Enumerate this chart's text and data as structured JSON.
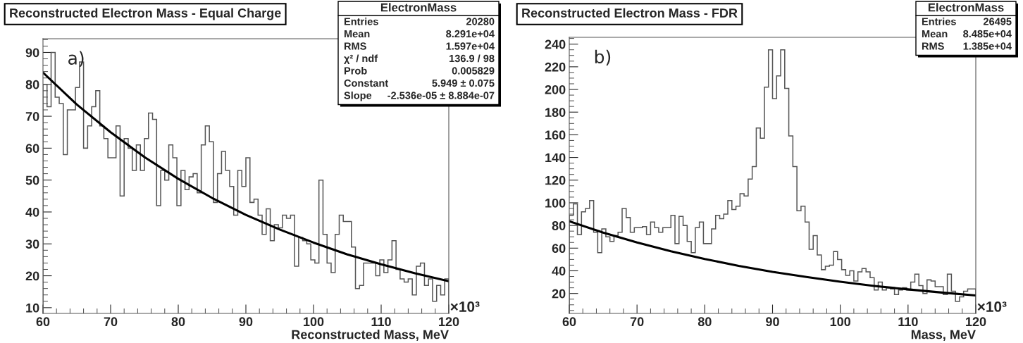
{
  "chart_data": [
    {
      "type": "histogram",
      "title": "Reconstructed Electron Mass - Equal Charge",
      "xlabel": "Reconstructed Mass, MeV",
      "annotations": [
        "×10³",
        "a)",
        "ElectronMass",
        "Entries",
        "20280",
        "Mean",
        "8.291e+04",
        "RMS",
        "1.597e+04",
        "χ² / ndf",
        "136.9 / 98",
        "Prob",
        "0.005829",
        "Constant",
        "5.949 ± 0.075",
        "Slope",
        "-2.536e-05 ± 8.884e-07"
      ],
      "color": "#555555",
      "bins": [
        60,
        60.6,
        61.2,
        61.8,
        62.4,
        63,
        63.6,
        64.2,
        64.8,
        65.4,
        66,
        66.6,
        67.2,
        67.8,
        68.4,
        69,
        69.6,
        70.2,
        70.8,
        71.4,
        72,
        72.6,
        73.2,
        73.8,
        74.4,
        75,
        75.6,
        76.2,
        76.8,
        77.4,
        78,
        78.6,
        79.2,
        79.8,
        80.4,
        81,
        81.6,
        82.2,
        82.8,
        83.4,
        84,
        84.6,
        85.2,
        85.8,
        86.4,
        87,
        87.6,
        88.2,
        88.8,
        89.4,
        90,
        90.6,
        91.2,
        91.8,
        92.4,
        93,
        93.6,
        94.2,
        94.8,
        95.4,
        96,
        96.6,
        97.2,
        97.8,
        98.4,
        99,
        99.6,
        100.2,
        100.8,
        101.4,
        102,
        102.6,
        103.2,
        103.8,
        104.4,
        105,
        105.6,
        106.2,
        106.8,
        107.4,
        108,
        108.6,
        109.2,
        109.8,
        110.4,
        111,
        111.6,
        112.2,
        112.8,
        113.4,
        114,
        114.6,
        115.2,
        115.8,
        116.4,
        117,
        117.6,
        118.2,
        118.8,
        119.4,
        120
      ],
      "values": [
        80,
        73,
        90,
        76,
        74,
        58,
        72,
        72,
        79,
        87,
        60,
        67,
        73,
        78,
        67,
        63,
        57,
        57,
        67,
        45,
        63,
        60,
        53,
        61,
        53,
        63,
        71,
        69,
        42,
        53,
        50,
        61,
        57,
        42,
        53,
        47,
        51,
        52,
        46,
        61,
        67,
        62,
        43,
        52,
        59,
        53,
        48,
        39,
        53,
        48,
        57,
        43,
        44,
        39,
        33,
        41,
        31,
        36,
        35,
        39,
        38,
        39,
        23,
        32,
        31,
        30,
        25,
        24,
        50,
        33,
        24,
        21,
        33,
        39,
        37,
        37,
        29,
        16,
        17,
        24,
        24,
        24,
        20,
        25,
        21,
        25,
        31,
        22,
        19,
        18,
        19,
        14,
        23,
        24,
        17,
        19,
        12,
        17,
        14,
        19
      ],
      "series": [
        {
          "type": "line",
          "color": "#000000",
          "x": [
            60,
            65,
            70,
            75,
            80,
            85,
            90,
            95,
            100,
            105,
            110,
            115,
            120
          ],
          "values": [
            83.7,
            73.7,
            65.0,
            57.2,
            50.4,
            44.4,
            39.1,
            34.5,
            30.4,
            26.7,
            23.6,
            20.8,
            18.3
          ]
        }
      ],
      "xlim": [
        60,
        120
      ],
      "ylim": [
        8.2,
        94.3
      ],
      "xticks": [
        60,
        70,
        80,
        90,
        100,
        110,
        120
      ],
      "yticks": [
        10,
        20,
        30,
        40,
        50,
        60,
        70,
        80,
        90
      ],
      "grid": false
    },
    {
      "type": "histogram",
      "title": "Reconstructed Electron Mass - FDR",
      "xlabel": "Mass, MeV",
      "annotations": [
        "×10³",
        "b)",
        "ElectronMass",
        "Entries",
        "26495",
        "Mean",
        "8.485e+04",
        "RMS",
        "1.385e+04"
      ],
      "color": "#555555",
      "bins": [
        60,
        60.6,
        61.2,
        61.8,
        62.4,
        63,
        63.6,
        64.2,
        64.8,
        65.4,
        66,
        66.6,
        67.2,
        67.8,
        68.4,
        69,
        69.6,
        70.2,
        70.8,
        71.4,
        72,
        72.6,
        73.2,
        73.8,
        74.4,
        75,
        75.6,
        76.2,
        76.8,
        77.4,
        78,
        78.6,
        79.2,
        79.8,
        80.4,
        81,
        81.6,
        82.2,
        82.8,
        83.4,
        84,
        84.6,
        85.2,
        85.8,
        86.4,
        87,
        87.6,
        88.2,
        88.8,
        89.4,
        90,
        90.6,
        91.2,
        91.8,
        92.4,
        93,
        93.6,
        94.2,
        94.8,
        95.4,
        96,
        96.6,
        97.2,
        97.8,
        98.4,
        99,
        99.6,
        100.2,
        100.8,
        101.4,
        102,
        102.6,
        103.2,
        103.8,
        104.4,
        105,
        105.6,
        106.2,
        106.8,
        107.4,
        108,
        108.6,
        109.2,
        109.8,
        110.4,
        111,
        111.6,
        112.2,
        112.8,
        113.4,
        114,
        114.6,
        115.2,
        115.8,
        116.4,
        117,
        117.6,
        118.2,
        118.8,
        119.4,
        120
      ],
      "values": [
        89,
        99,
        72,
        92,
        95,
        102,
        74,
        56,
        77,
        70,
        66,
        71,
        74,
        95,
        87,
        74,
        78,
        78,
        79,
        72,
        83,
        78,
        74,
        78,
        78,
        89,
        64,
        88,
        80,
        66,
        56,
        78,
        83,
        64,
        64,
        77,
        89,
        86,
        90,
        102,
        94,
        97,
        108,
        106,
        121,
        132,
        166,
        157,
        202,
        235,
        192,
        212,
        235,
        201,
        159,
        132,
        93,
        97,
        83,
        59,
        71,
        54,
        41,
        44,
        45,
        57,
        50,
        41,
        36,
        40,
        31,
        39,
        42,
        39,
        34,
        23,
        30,
        23,
        25,
        24,
        19,
        23,
        25,
        23,
        30,
        37,
        27,
        20,
        32,
        31,
        26,
        26,
        19,
        37,
        22,
        13,
        17,
        22,
        24,
        24
      ],
      "series": [
        {
          "type": "line",
          "color": "#000000",
          "x": [
            60,
            65,
            70,
            75,
            80,
            85,
            90,
            95,
            100,
            105,
            110,
            115,
            120
          ],
          "values": [
            83.7,
            73.7,
            65.0,
            57.2,
            50.4,
            44.4,
            39.1,
            34.5,
            30.4,
            26.7,
            23.6,
            20.8,
            18.3
          ]
        }
      ],
      "xlim": [
        60,
        120
      ],
      "ylim": [
        2.4,
        246
      ],
      "xticks": [
        60,
        70,
        80,
        90,
        100,
        110,
        120
      ],
      "yticks": [
        20,
        40,
        60,
        80,
        100,
        120,
        140,
        160,
        180,
        200,
        220,
        240
      ],
      "grid": false
    }
  ]
}
